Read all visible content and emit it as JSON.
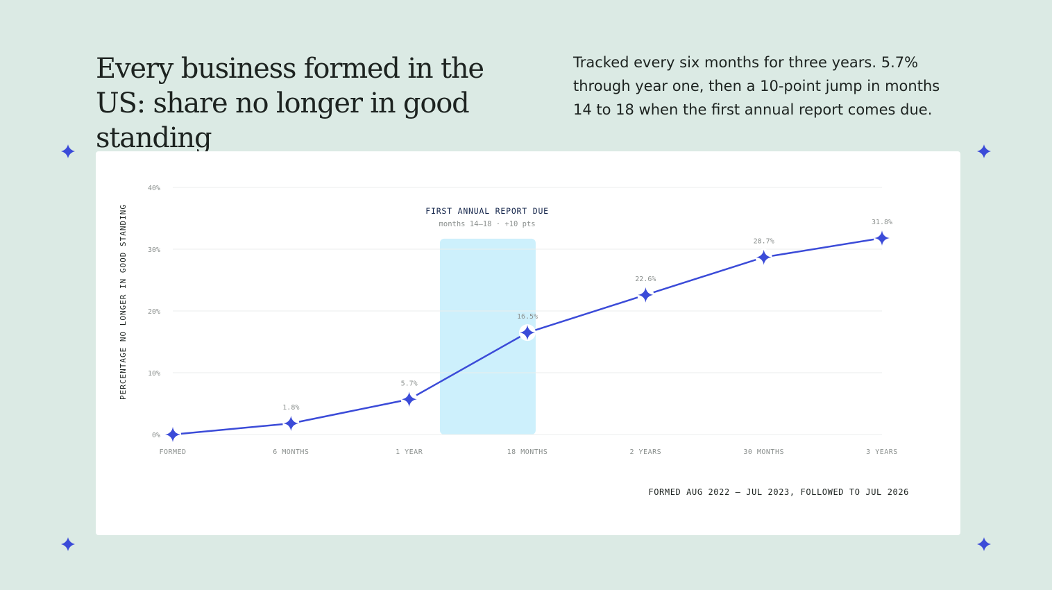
{
  "chart_data": {
    "type": "line",
    "title": "Every business formed in the US: share no longer in good standing",
    "subtitle": "Tracked every six months for three years. 5.7% through year one, then a 10-point jump in months 14 to 18 when the first annual report comes due.",
    "y_label": "PERCENTAGE NO LONGER IN GOOD STANDING",
    "annotation": {
      "title": "FIRST ANNUAL REPORT DUE",
      "text": "months 14–18 · +10 pts"
    },
    "footnote": "FORMED AUG 2022 – JUL 2023, FOLLOWED TO JUL 2026",
    "categories": [
      "FORMED",
      "6 MONTHS",
      "1 YEAR",
      "18 MONTHS",
      "2 YEARS",
      "30 MONTHS",
      "3 YEARS"
    ],
    "series": [
      {
        "color": "#3b4bd8",
        "values": [
          0,
          1.8,
          5.7,
          16.5,
          22.6,
          28.7,
          31.8
        ],
        "value_labels": [
          null,
          "1.8%",
          "5.7%",
          "16.5%",
          "22.6%",
          "28.7%",
          "31.8%"
        ]
      }
    ],
    "ylim": [
      0,
      40
    ],
    "yticks": [
      {
        "value": 0,
        "label": "0%"
      },
      {
        "value": 10,
        "label": "10%"
      },
      {
        "value": 20,
        "label": "20%"
      },
      {
        "value": 30,
        "label": "30%"
      },
      {
        "value": 40,
        "label": "40%"
      }
    ],
    "grid": true,
    "highlight_color": "#cdf0fc"
  }
}
